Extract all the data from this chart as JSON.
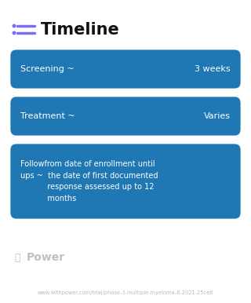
{
  "bg_color": "#ffffff",
  "title": "Timeline",
  "title_fontsize": 15,
  "title_color": "#111111",
  "icon_color": "#7b6cf6",
  "cards": [
    {
      "label": "Screening ~",
      "value": "3 weeks",
      "color_left": "#3d8ef0",
      "color_right": "#4d9bf5",
      "text_color": "#ffffff",
      "row": 0
    },
    {
      "label": "Treatment ~",
      "value": "Varies",
      "color_left": "#6878e8",
      "color_right": "#8b72d8",
      "text_color": "#ffffff",
      "row": 1
    },
    {
      "label": "Followfrom date of enrollment until\nups ~  the date of first documented\n           response assessed up to 12\n           months",
      "value": "",
      "color_left": "#9b6ed8",
      "color_right": "#b87ad0",
      "text_color": "#ffffff",
      "row": 2
    }
  ],
  "power_text": "Power",
  "power_color": "#c0c0c0",
  "url_text": "www.withpower.com/trial/phase-3-multiple-myeloma-8-2021-25ce6",
  "url_color": "#bbbbbb",
  "url_fontsize": 4.8
}
